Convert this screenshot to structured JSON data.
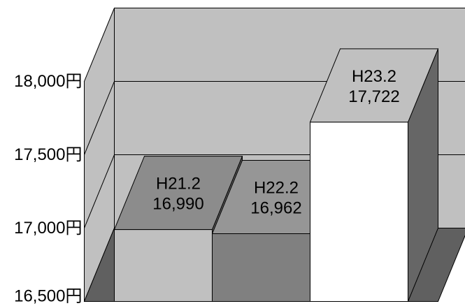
{
  "chart_data": {
    "type": "bar",
    "three_d": true,
    "categories": [
      "H21.2",
      "H22.2",
      "H23.2"
    ],
    "values": [
      16990,
      16962,
      17722
    ],
    "value_labels": [
      "16,990",
      "16,962",
      "17,722"
    ],
    "ylim": [
      16500,
      18000
    ],
    "y_ticks": [
      16500,
      17000,
      17500,
      18000
    ],
    "y_tick_labels": [
      "16,500円",
      "17,000円",
      "17,500円",
      "18,000円"
    ],
    "grid": true,
    "colors": {
      "back_wall": "#c0c0c0",
      "side_wall": "#c0c0c0",
      "floor": "#606060",
      "gridline": "#000000",
      "bars": [
        {
          "front": "#c0c0c0",
          "top": "#8c8c8c",
          "side": "#606060"
        },
        {
          "front": "#808080",
          "top": "#969696",
          "side": "#606060"
        },
        {
          "front": "#ffffff",
          "top": "#c0c0c0",
          "side": "#666666"
        }
      ]
    }
  }
}
